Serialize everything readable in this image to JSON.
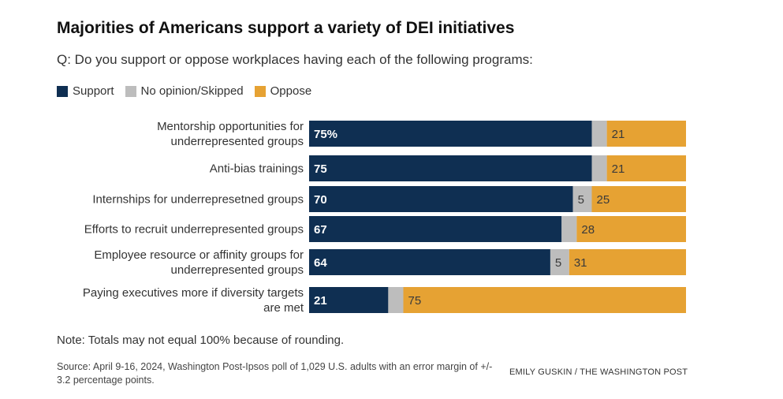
{
  "header": {
    "title": "Majorities of Americans support a variety of DEI initiatives",
    "subtitle": "Q: Do you support or oppose workplaces having each of the following programs:"
  },
  "legend": [
    {
      "label": "Support",
      "color": "#0f2f52"
    },
    {
      "label": "No opinion/Skipped",
      "color": "#bdbdbd"
    },
    {
      "label": "Oppose",
      "color": "#e6a233"
    }
  ],
  "chart_data": {
    "type": "bar",
    "orientation": "horizontal",
    "stacked": true,
    "title": "Majorities of Americans support a variety of DEI initiatives",
    "xlabel": "",
    "ylabel": "",
    "xlim": [
      0,
      100
    ],
    "categories": [
      [
        "Mentorship opportunities for",
        "underrepresented groups"
      ],
      [
        "Anti-bias trainings"
      ],
      [
        "Internships for underrepresetned groups"
      ],
      [
        "Efforts to recruit underrepresented groups"
      ],
      [
        "Employee resource or affinity groups for",
        "underrepresented groups"
      ],
      [
        "Paying executives more if diversity targets",
        "are met"
      ]
    ],
    "series": [
      {
        "name": "Support",
        "color": "#0f2f52",
        "values": [
          75,
          75,
          70,
          67,
          64,
          21
        ],
        "labels": [
          "75%",
          "75",
          "70",
          "67",
          "64",
          "21"
        ]
      },
      {
        "name": "No opinion/Skipped",
        "color": "#bdbdbd",
        "values": [
          4,
          4,
          5,
          4,
          5,
          4
        ],
        "labels": [
          "",
          "",
          "5",
          "",
          "5",
          ""
        ]
      },
      {
        "name": "Oppose",
        "color": "#e6a233",
        "values": [
          21,
          21,
          25,
          28,
          31,
          75
        ],
        "labels": [
          "21",
          "21",
          "25",
          "28",
          "31",
          "75"
        ]
      }
    ]
  },
  "footer": {
    "note": "Note: Totals may not equal 100% because of rounding.",
    "source": "Source: April 9-16, 2024, Washington Post-Ipsos poll of 1,029 U.S. adults with an error margin of +/- 3.2 percentage points.",
    "credit": "EMILY GUSKIN / THE WASHINGTON POST"
  }
}
